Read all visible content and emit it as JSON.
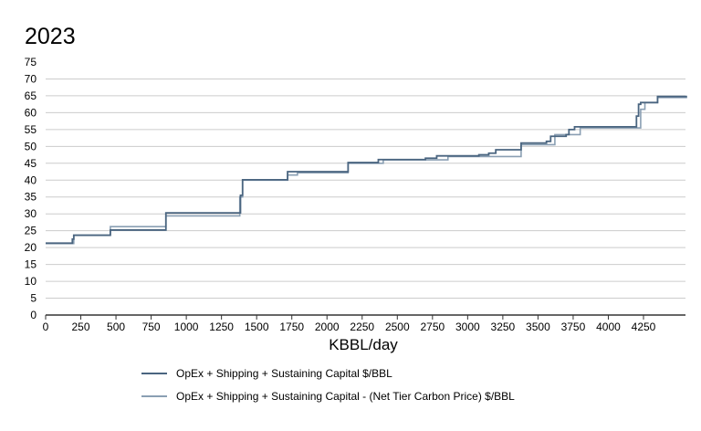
{
  "chart_data": {
    "type": "line",
    "step": true,
    "title": "2023",
    "xlabel": "KBBL/day",
    "ylabel": "",
    "xlim": [
      0,
      4560
    ],
    "ylim": [
      0,
      75
    ],
    "xticks": [
      0,
      250,
      500,
      750,
      1000,
      1250,
      1500,
      1750,
      2000,
      2250,
      2500,
      2750,
      3000,
      3250,
      3500,
      3750,
      4000,
      4250
    ],
    "yticks": [
      0,
      5,
      10,
      15,
      20,
      25,
      30,
      35,
      40,
      45,
      50,
      55,
      60,
      65,
      70,
      75
    ],
    "grid": true,
    "legend_position": "bottom",
    "series": [
      {
        "name": "OpEx + Shipping + Sustaining Capital $/BBL",
        "color": "#4a6580",
        "points": [
          [
            0,
            21.3
          ],
          [
            190,
            22.5
          ],
          [
            200,
            23.7
          ],
          [
            460,
            25.2
          ],
          [
            855,
            30.3
          ],
          [
            1385,
            35.5
          ],
          [
            1400,
            40.1
          ],
          [
            1720,
            42.5
          ],
          [
            2150,
            45.2
          ],
          [
            2365,
            46.1
          ],
          [
            2700,
            46.5
          ],
          [
            2780,
            47.2
          ],
          [
            3080,
            47.5
          ],
          [
            3150,
            48
          ],
          [
            3200,
            49
          ],
          [
            3380,
            51
          ],
          [
            3560,
            51.5
          ],
          [
            3590,
            53
          ],
          [
            3700,
            53.5
          ],
          [
            3720,
            55
          ],
          [
            3760,
            55.8
          ],
          [
            4200,
            59
          ],
          [
            4215,
            62.5
          ],
          [
            4230,
            63
          ],
          [
            4350,
            64.8
          ],
          [
            4560,
            64.8
          ]
        ]
      },
      {
        "name": "OpEx + Shipping + Sustaining Capital  - (Net Tier Carbon Price) $/BBL",
        "color": "#8a9fb3",
        "points": [
          [
            0,
            21.2
          ],
          [
            200,
            23.6
          ],
          [
            460,
            26.2
          ],
          [
            855,
            29.4
          ],
          [
            1380,
            35
          ],
          [
            1400,
            40
          ],
          [
            1720,
            41.5
          ],
          [
            1790,
            42.2
          ],
          [
            2150,
            45
          ],
          [
            2400,
            46
          ],
          [
            2860,
            47
          ],
          [
            3380,
            50.5
          ],
          [
            3620,
            53.5
          ],
          [
            3800,
            55.5
          ],
          [
            4230,
            61
          ],
          [
            4260,
            63
          ],
          [
            4350,
            64.5
          ],
          [
            4560,
            64.5
          ]
        ]
      }
    ]
  }
}
